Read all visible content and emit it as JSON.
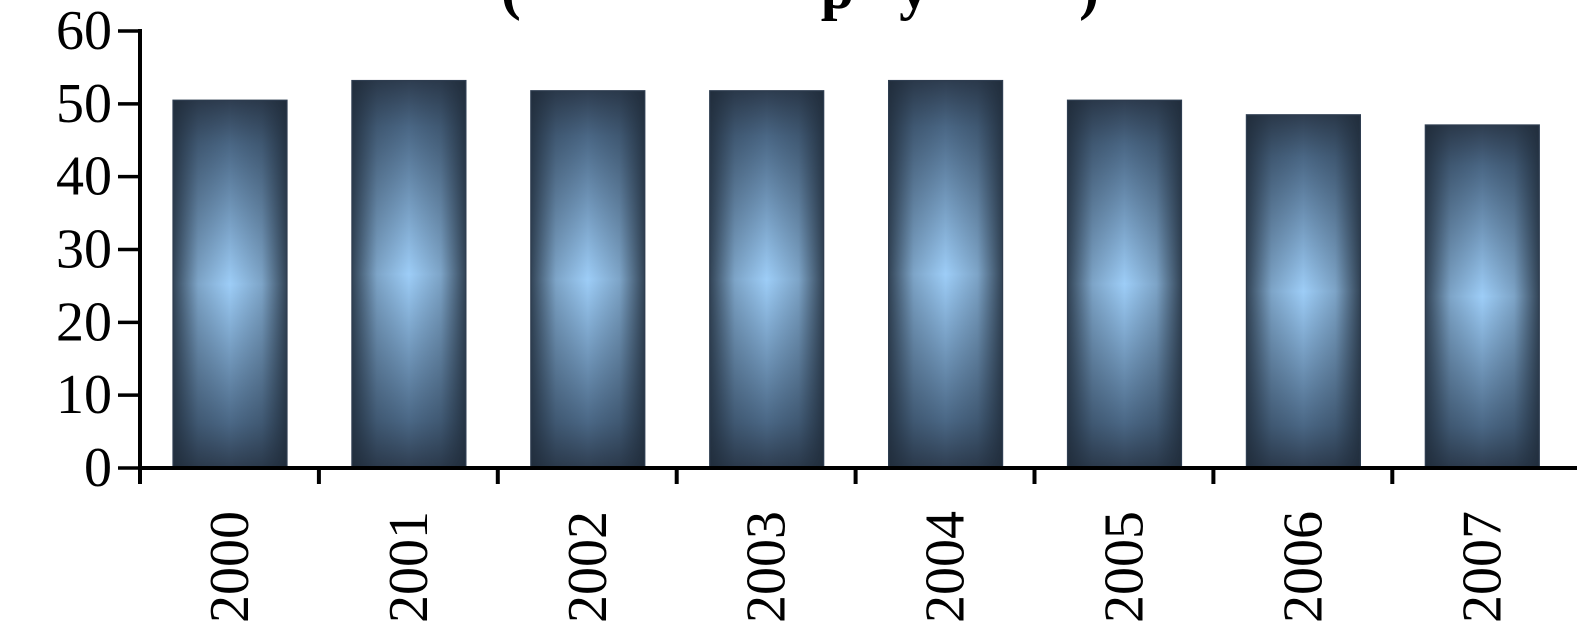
{
  "chart_data": {
    "type": "bar",
    "title": "",
    "title_partial": "(                    p   y          )",
    "xlabel": "",
    "ylabel": "",
    "categories": [
      "2000",
      "2001",
      "2002",
      "2003",
      "2004",
      "2005",
      "2006",
      "2007"
    ],
    "values": [
      50.5,
      53.2,
      51.8,
      51.8,
      53.2,
      50.5,
      48.5,
      47.1
    ],
    "ylim": [
      0,
      60
    ],
    "yticks": [
      "0",
      "10",
      "20",
      "30",
      "40",
      "50",
      "60"
    ],
    "grid": false,
    "legend": "none",
    "colors": {
      "bar_edge": "#2e3d50",
      "bar_center": "#9dcdf7",
      "axis": "#000000"
    }
  }
}
